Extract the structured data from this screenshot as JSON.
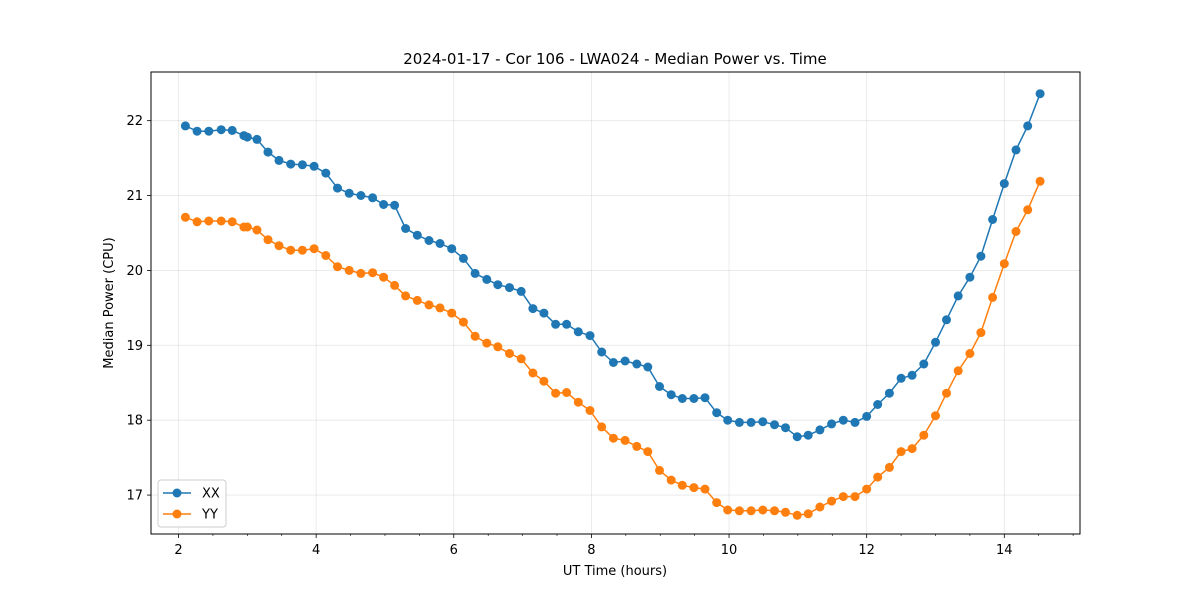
{
  "chart_data": {
    "type": "line",
    "title": "2024-01-17 - Cor 106 - LWA024 - Median Power vs. Time",
    "xlabel": "UT Time (hours)",
    "ylabel": "Median Power (CPU)",
    "xlim": [
      1.6,
      15.1
    ],
    "ylim": [
      16.48,
      22.65
    ],
    "xticks": [
      2,
      4,
      6,
      8,
      10,
      12,
      14
    ],
    "xtick_labels": [
      "2",
      "4",
      "6",
      "8",
      "10",
      "12",
      "14"
    ],
    "yticks": [
      17,
      18,
      19,
      20,
      21,
      22
    ],
    "ytick_labels": [
      "17",
      "18",
      "19",
      "20",
      "21",
      "22"
    ],
    "grid": true,
    "legend_position": "lower-left",
    "x": [
      2.1,
      2.27,
      2.44,
      2.62,
      2.78,
      2.95,
      3.0,
      3.14,
      3.3,
      3.46,
      3.63,
      3.8,
      3.97,
      4.14,
      4.31,
      4.48,
      4.65,
      4.82,
      4.98,
      5.14,
      5.3,
      5.47,
      5.64,
      5.8,
      5.97,
      6.14,
      6.31,
      6.48,
      6.64,
      6.81,
      6.98,
      7.15,
      7.31,
      7.48,
      7.64,
      7.81,
      7.98,
      8.15,
      8.32,
      8.49,
      8.66,
      8.82,
      8.99,
      9.16,
      9.32,
      9.49,
      9.65,
      9.82,
      9.98,
      10.15,
      10.32,
      10.49,
      10.66,
      10.82,
      10.99,
      11.15,
      11.32,
      11.49,
      11.66,
      11.83,
      12.0,
      12.16,
      12.33,
      12.5,
      12.66,
      12.83,
      13.0,
      13.16,
      13.33,
      13.5,
      13.66,
      13.83,
      14.0,
      14.17,
      14.34,
      14.52
    ],
    "series": [
      {
        "name": "XX",
        "color": "#1f77b4",
        "values": [
          21.93,
          21.86,
          21.86,
          21.88,
          21.87,
          21.8,
          21.78,
          21.75,
          21.58,
          21.47,
          21.42,
          21.41,
          21.39,
          21.3,
          21.1,
          21.03,
          21.0,
          20.97,
          20.88,
          20.87,
          20.56,
          20.47,
          20.4,
          20.36,
          20.29,
          20.16,
          19.96,
          19.88,
          19.81,
          19.77,
          19.72,
          19.49,
          19.43,
          19.28,
          19.28,
          19.18,
          19.13,
          18.91,
          18.77,
          18.79,
          18.75,
          18.71,
          18.45,
          18.34,
          18.29,
          18.29,
          18.3,
          18.1,
          18.0,
          17.97,
          17.97,
          17.98,
          17.94,
          17.9,
          17.78,
          17.8,
          17.87,
          17.95,
          18.0,
          17.97,
          18.05,
          18.21,
          18.36,
          18.56,
          18.6,
          18.75,
          19.04,
          19.34,
          19.66,
          19.91,
          20.19,
          20.68,
          21.16,
          21.61,
          21.93,
          22.36
        ]
      },
      {
        "name": "YY",
        "color": "#ff7f0e",
        "values": [
          20.71,
          20.65,
          20.66,
          20.66,
          20.65,
          20.58,
          20.58,
          20.54,
          20.41,
          20.33,
          20.27,
          20.27,
          20.29,
          20.2,
          20.05,
          20.0,
          19.96,
          19.97,
          19.91,
          19.8,
          19.66,
          19.6,
          19.54,
          19.5,
          19.43,
          19.31,
          19.12,
          19.03,
          18.98,
          18.89,
          18.82,
          18.63,
          18.52,
          18.36,
          18.37,
          18.24,
          18.13,
          17.91,
          17.76,
          17.73,
          17.65,
          17.58,
          17.33,
          17.2,
          17.13,
          17.1,
          17.08,
          16.9,
          16.8,
          16.79,
          16.79,
          16.8,
          16.79,
          16.77,
          16.73,
          16.75,
          16.84,
          16.92,
          16.98,
          16.98,
          17.08,
          17.24,
          17.37,
          17.58,
          17.62,
          17.8,
          18.06,
          18.36,
          18.66,
          18.89,
          19.17,
          19.64,
          20.09,
          20.52,
          20.81,
          21.19
        ]
      }
    ]
  }
}
